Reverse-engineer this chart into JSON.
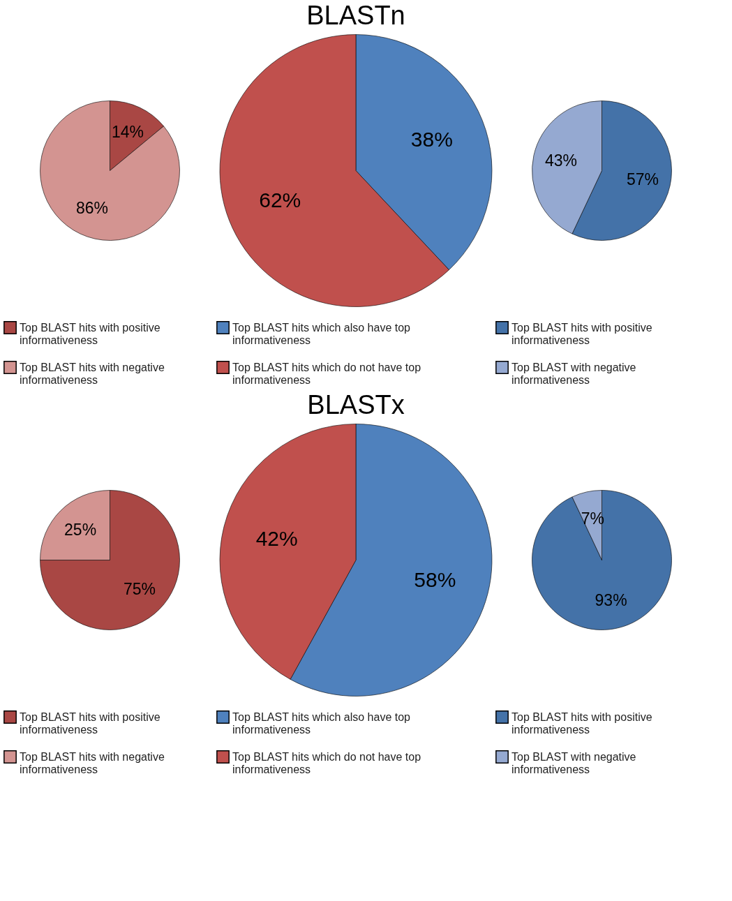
{
  "chart_data": [
    {
      "type": "pie",
      "categories": [
        "Top BLAST hits with positive informativeness",
        "Top BLAST hits with negative informativeness"
      ],
      "values": [
        14,
        86
      ],
      "colors": [
        "#a94744",
        "#d39491"
      ],
      "value_labels": [
        "14%",
        "86%"
      ],
      "legend": "bottom"
    },
    {
      "type": "pie",
      "title": "BLASTn",
      "categories": [
        "Top BLAST hits which also have top informativeness",
        "Top BLAST hits which do not have top informativeness"
      ],
      "values": [
        38,
        62
      ],
      "colors": [
        "#4f81bd",
        "#c0504d"
      ],
      "value_labels": [
        "38%",
        "62%"
      ],
      "legend": "bottom"
    },
    {
      "type": "pie",
      "categories": [
        "Top BLAST hits with positive informativeness",
        "Top BLAST with negative informativeness"
      ],
      "values": [
        57,
        43
      ],
      "colors": [
        "#4472a8",
        "#95a9d1"
      ],
      "value_labels": [
        "57%",
        "43%"
      ],
      "legend": "bottom"
    },
    {
      "type": "pie",
      "categories": [
        "Top BLAST hits with positive informativeness",
        "Top BLAST hits with negative informativeness"
      ],
      "values": [
        75,
        25
      ],
      "colors": [
        "#a94744",
        "#d39491"
      ],
      "value_labels": [
        "75%",
        "25%"
      ],
      "legend": "bottom"
    },
    {
      "type": "pie",
      "title": "BLASTx",
      "categories": [
        "Top BLAST hits which also have top informativeness",
        "Top BLAST hits which do not have top informativeness"
      ],
      "values": [
        58,
        42
      ],
      "colors": [
        "#4f81bd",
        "#c0504d"
      ],
      "value_labels": [
        "58%",
        "42%"
      ],
      "legend": "bottom"
    },
    {
      "type": "pie",
      "categories": [
        "Top BLAST hits with positive informativeness",
        "Top BLAST with negative informativeness"
      ],
      "values": [
        93,
        7
      ],
      "colors": [
        "#4472a8",
        "#95a9d1"
      ],
      "value_labels": [
        "93%",
        "7%"
      ],
      "legend": "bottom"
    }
  ]
}
